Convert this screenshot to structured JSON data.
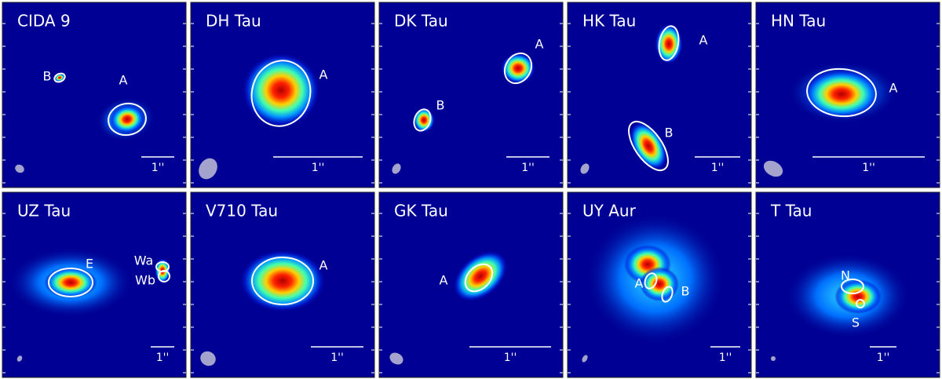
{
  "panels": [
    {
      "title": "CIDA 9",
      "labels": [
        "B",
        "A"
      ],
      "scale": "1''"
    },
    {
      "title": "DH Tau",
      "labels": [
        "A"
      ],
      "scale": "1''"
    },
    {
      "title": "DK Tau",
      "labels": [
        "A",
        "B"
      ],
      "scale": "1''"
    },
    {
      "title": "HK Tau",
      "labels": [
        "A",
        "B"
      ],
      "scale": "1''"
    },
    {
      "title": "HN Tau",
      "labels": [
        "A"
      ],
      "scale": "1''"
    },
    {
      "title": "UZ Tau",
      "labels": [
        "E",
        "Wa",
        "Wb"
      ],
      "scale": "1''"
    },
    {
      "title": "V710 Tau",
      "labels": [
        "A"
      ],
      "scale": "1''"
    },
    {
      "title": "GK Tau",
      "labels": [
        "A"
      ],
      "scale": "1''"
    },
    {
      "title": "UY Aur",
      "labels": [
        "A",
        "B"
      ],
      "scale": "1''"
    },
    {
      "title": "T Tau",
      "labels": [
        "N",
        "S"
      ],
      "scale": "1''"
    }
  ]
}
